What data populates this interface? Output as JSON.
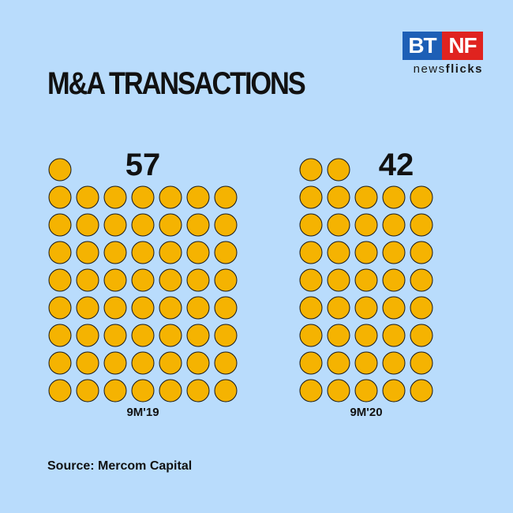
{
  "brand": {
    "logo_left": "BT",
    "logo_right": "NF",
    "logo_sub_regular": "news",
    "logo_sub_bold": "flicks",
    "colors": {
      "left": "#1d5fb6",
      "right": "#e0231f"
    }
  },
  "title": "M&A TRANSACTIONS",
  "source": "Source: Mercom Capital",
  "colors": {
    "background": "#b9dcfc",
    "dot": "#f5b301",
    "dot_stroke": "#1a1a1a"
  },
  "chart_data": {
    "type": "pictogram",
    "unit": "1 circle = 1 transaction",
    "categories": [
      "9M'19",
      "9M'20"
    ],
    "values": [
      57,
      42
    ],
    "columns_per_group": [
      7,
      5
    ]
  }
}
